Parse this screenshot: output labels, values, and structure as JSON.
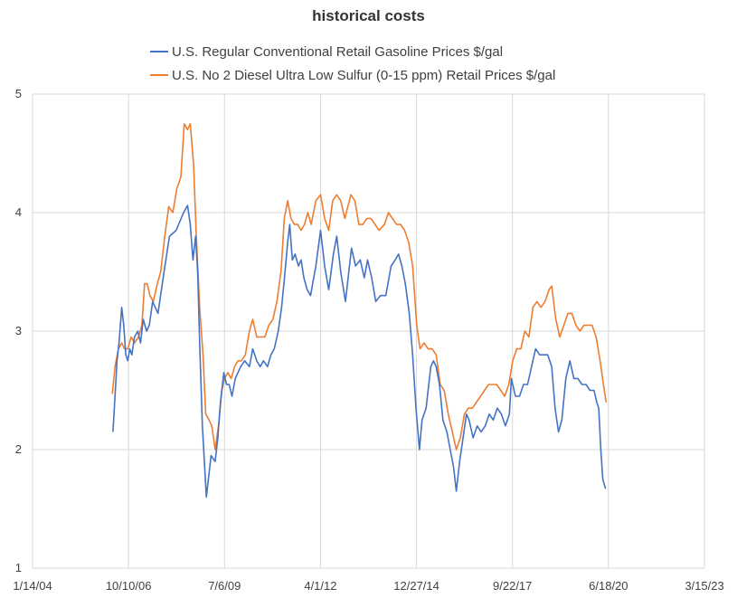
{
  "chart_data": {
    "type": "line",
    "title": "historical costs",
    "xlabel": "",
    "ylabel": "",
    "x_range": [
      "1/14/04",
      "3/15/23"
    ],
    "ylim": [
      1,
      5
    ],
    "grid": true,
    "legend_position": "top",
    "x_tick_labels": [
      "1/14/04",
      "10/10/06",
      "7/6/09",
      "4/1/12",
      "12/27/14",
      "9/22/17",
      "6/18/20",
      "3/15/23"
    ],
    "y_tick_labels": [
      "1",
      "2",
      "3",
      "4",
      "5"
    ],
    "series": [
      {
        "name": "U.S. Regular Conventional Retail Gasoline Prices $/gal",
        "color": "#4472c4",
        "points": [
          [
            "5/1/06",
            2.15
          ],
          [
            "5/22/06",
            2.45
          ],
          [
            "6/12/06",
            2.75
          ],
          [
            "7/3/06",
            2.9
          ],
          [
            "7/31/06",
            3.2
          ],
          [
            "8/21/06",
            3.05
          ],
          [
            "9/11/06",
            2.8
          ],
          [
            "10/2/06",
            2.75
          ],
          [
            "10/23/06",
            2.85
          ],
          [
            "11/13/06",
            2.8
          ],
          [
            "12/11/06",
            2.95
          ],
          [
            "1/15/07",
            3.0
          ],
          [
            "2/12/07",
            2.9
          ],
          [
            "3/12/07",
            3.1
          ],
          [
            "4/16/07",
            3.0
          ],
          [
            "5/14/07",
            3.05
          ],
          [
            "6/18/07",
            3.25
          ],
          [
            "8/13/07",
            3.15
          ],
          [
            "10/15/07",
            3.5
          ],
          [
            "12/10/07",
            3.8
          ],
          [
            "2/18/08",
            3.85
          ],
          [
            "5/5/08",
            4.0
          ],
          [
            "6/16/08",
            4.06
          ],
          [
            "7/14/08",
            3.9
          ],
          [
            "8/11/08",
            3.6
          ],
          [
            "9/8/08",
            3.8
          ],
          [
            "9/29/08",
            3.5
          ],
          [
            "10/20/08",
            2.9
          ],
          [
            "11/17/08",
            2.2
          ],
          [
            "12/8/08",
            1.9
          ],
          [
            "12/29/08",
            1.6
          ],
          [
            "1/26/09",
            1.8
          ],
          [
            "2/16/09",
            1.95
          ],
          [
            "3/30/09",
            1.9
          ],
          [
            "4/27/09",
            2.1
          ],
          [
            "5/25/09",
            2.4
          ],
          [
            "6/29/09",
            2.65
          ],
          [
            "7/27/09",
            2.55
          ],
          [
            "8/24/09",
            2.55
          ],
          [
            "9/21/09",
            2.45
          ],
          [
            "10/26/09",
            2.6
          ],
          [
            "11/23/09",
            2.65
          ],
          [
            "12/21/09",
            2.7
          ],
          [
            "2/1/10",
            2.75
          ],
          [
            "3/22/10",
            2.7
          ],
          [
            "4/26/10",
            2.85
          ],
          [
            "6/7/10",
            2.75
          ],
          [
            "7/12/10",
            2.7
          ],
          [
            "8/16/10",
            2.75
          ],
          [
            "9/27/10",
            2.7
          ],
          [
            "11/1/10",
            2.8
          ],
          [
            "12/6/10",
            2.85
          ],
          [
            "1/17/11",
            3.0
          ],
          [
            "2/21/11",
            3.2
          ],
          [
            "3/28/11",
            3.5
          ],
          [
            "4/25/11",
            3.75
          ],
          [
            "5/16/11",
            3.9
          ],
          [
            "6/13/11",
            3.6
          ],
          [
            "7/11/11",
            3.65
          ],
          [
            "8/15/11",
            3.55
          ],
          [
            "9/12/11",
            3.6
          ],
          [
            "10/10/11",
            3.45
          ],
          [
            "11/14/11",
            3.35
          ],
          [
            "12/19/11",
            3.3
          ],
          [
            "2/13/12",
            3.55
          ],
          [
            "4/2/12",
            3.85
          ],
          [
            "5/14/12",
            3.55
          ],
          [
            "6/25/12",
            3.35
          ],
          [
            "8/13/12",
            3.65
          ],
          [
            "9/17/12",
            3.8
          ],
          [
            "10/29/12",
            3.5
          ],
          [
            "12/17/12",
            3.25
          ],
          [
            "2/18/13",
            3.7
          ],
          [
            "4/1/13",
            3.55
          ],
          [
            "5/20/13",
            3.6
          ],
          [
            "7/1/13",
            3.45
          ],
          [
            "8/5/13",
            3.6
          ],
          [
            "9/16/13",
            3.45
          ],
          [
            "10/28/13",
            3.25
          ],
          [
            "12/16/13",
            3.3
          ],
          [
            "2/10/14",
            3.3
          ],
          [
            "4/7/14",
            3.55
          ],
          [
            "5/19/14",
            3.6
          ],
          [
            "6/23/14",
            3.65
          ],
          [
            "7/28/14",
            3.55
          ],
          [
            "9/1/14",
            3.4
          ],
          [
            "10/13/14",
            3.15
          ],
          [
            "11/17/14",
            2.8
          ],
          [
            "12/22/14",
            2.35
          ],
          [
            "1/26/15",
            2.0
          ],
          [
            "2/23/15",
            2.25
          ],
          [
            "4/6/15",
            2.35
          ],
          [
            "5/25/15",
            2.7
          ],
          [
            "6/22/15",
            2.75
          ],
          [
            "7/20/15",
            2.7
          ],
          [
            "8/24/15",
            2.55
          ],
          [
            "9/28/15",
            2.25
          ],
          [
            "11/9/15",
            2.15
          ],
          [
            "12/14/15",
            2.0
          ],
          [
            "1/18/16",
            1.85
          ],
          [
            "2/15/16",
            1.65
          ],
          [
            "3/21/16",
            1.9
          ],
          [
            "4/25/16",
            2.1
          ],
          [
            "5/30/16",
            2.3
          ],
          [
            "6/27/16",
            2.25
          ],
          [
            "8/8/16",
            2.1
          ],
          [
            "9/19/16",
            2.2
          ],
          [
            "10/31/16",
            2.15
          ],
          [
            "12/12/16",
            2.2
          ],
          [
            "1/23/17",
            2.3
          ],
          [
            "3/6/17",
            2.25
          ],
          [
            "4/17/17",
            2.35
          ],
          [
            "5/29/17",
            2.3
          ],
          [
            "7/10/17",
            2.2
          ],
          [
            "8/21/17",
            2.3
          ],
          [
            "9/11/17",
            2.6
          ],
          [
            "10/23/17",
            2.45
          ],
          [
            "12/4/17",
            2.45
          ],
          [
            "1/15/18",
            2.55
          ],
          [
            "2/26/18",
            2.55
          ],
          [
            "4/9/18",
            2.7
          ],
          [
            "5/21/18",
            2.85
          ],
          [
            "7/2/18",
            2.8
          ],
          [
            "8/13/18",
            2.8
          ],
          [
            "9/24/18",
            2.8
          ],
          [
            "11/5/18",
            2.7
          ],
          [
            "12/10/18",
            2.35
          ],
          [
            "1/14/19",
            2.15
          ],
          [
            "2/18/19",
            2.25
          ],
          [
            "4/1/19",
            2.6
          ],
          [
            "5/13/19",
            2.75
          ],
          [
            "6/24/19",
            2.6
          ],
          [
            "8/5/19",
            2.6
          ],
          [
            "9/16/19",
            2.55
          ],
          [
            "10/28/19",
            2.55
          ],
          [
            "12/9/19",
            2.5
          ],
          [
            "1/20/20",
            2.5
          ],
          [
            "2/17/20",
            2.4
          ],
          [
            "3/9/20",
            2.35
          ],
          [
            "3/30/20",
            2.0
          ],
          [
            "4/20/20",
            1.75
          ],
          [
            "5/18/20",
            1.67
          ]
        ]
      },
      {
        "name": "U.S. No 2 Diesel Ultra Low Sulfur (0-15 ppm) Retail Prices $/gal",
        "color": "#ed7d31",
        "points": [
          [
            "4/24/06",
            2.47
          ],
          [
            "5/22/06",
            2.7
          ],
          [
            "6/26/06",
            2.85
          ],
          [
            "7/31/06",
            2.9
          ],
          [
            "8/28/06",
            2.85
          ],
          [
            "10/2/06",
            2.85
          ],
          [
            "11/6/06",
            2.95
          ],
          [
            "12/11/06",
            2.9
          ],
          [
            "1/22/07",
            2.95
          ],
          [
            "2/26/07",
            3.05
          ],
          [
            "3/26/07",
            3.4
          ],
          [
            "4/23/07",
            3.4
          ],
          [
            "5/21/07",
            3.3
          ],
          [
            "6/25/07",
            3.25
          ],
          [
            "8/6/07",
            3.4
          ],
          [
            "9/10/07",
            3.5
          ],
          [
            "10/22/07",
            3.8
          ],
          [
            "12/3/07",
            4.05
          ],
          [
            "1/14/08",
            4.0
          ],
          [
            "2/25/08",
            4.2
          ],
          [
            "4/7/08",
            4.3
          ],
          [
            "5/12/08",
            4.75
          ],
          [
            "6/16/08",
            4.7
          ],
          [
            "7/14/08",
            4.75
          ],
          [
            "8/18/08",
            4.4
          ],
          [
            "9/15/08",
            3.8
          ],
          [
            "10/20/08",
            3.2
          ],
          [
            "11/24/08",
            2.8
          ],
          [
            "12/22/08",
            2.3
          ],
          [
            "1/26/09",
            2.25
          ],
          [
            "2/23/09",
            2.2
          ],
          [
            "3/30/09",
            2.0
          ],
          [
            "5/4/09",
            2.2
          ],
          [
            "6/8/09",
            2.5
          ],
          [
            "7/6/09",
            2.6
          ],
          [
            "8/10/09",
            2.65
          ],
          [
            "9/14/09",
            2.6
          ],
          [
            "10/19/09",
            2.7
          ],
          [
            "11/23/09",
            2.75
          ],
          [
            "12/28/09",
            2.75
          ],
          [
            "2/8/10",
            2.8
          ],
          [
            "3/22/10",
            3.0
          ],
          [
            "4/26/10",
            3.1
          ],
          [
            "6/7/10",
            2.95
          ],
          [
            "7/19/10",
            2.95
          ],
          [
            "8/30/10",
            2.95
          ],
          [
            "10/11/10",
            3.05
          ],
          [
            "11/22/10",
            3.1
          ],
          [
            "1/3/11",
            3.25
          ],
          [
            "2/14/11",
            3.5
          ],
          [
            "3/21/11",
            3.95
          ],
          [
            "4/25/11",
            4.1
          ],
          [
            "5/30/11",
            3.95
          ],
          [
            "7/4/11",
            3.9
          ],
          [
            "8/8/11",
            3.9
          ],
          [
            "9/12/11",
            3.85
          ],
          [
            "10/17/11",
            3.9
          ],
          [
            "11/21/11",
            4.0
          ],
          [
            "12/26/11",
            3.9
          ],
          [
            "2/13/12",
            4.1
          ],
          [
            "4/2/12",
            4.15
          ],
          [
            "5/14/12",
            3.95
          ],
          [
            "6/25/12",
            3.85
          ],
          [
            "8/6/12",
            4.1
          ],
          [
            "9/17/12",
            4.15
          ],
          [
            "10/29/12",
            4.1
          ],
          [
            "12/10/12",
            3.95
          ],
          [
            "2/11/13",
            4.15
          ],
          [
            "3/25/13",
            4.1
          ],
          [
            "5/6/13",
            3.9
          ],
          [
            "6/17/13",
            3.9
          ],
          [
            "7/29/13",
            3.95
          ],
          [
            "9/9/13",
            3.95
          ],
          [
            "10/21/13",
            3.9
          ],
          [
            "12/2/13",
            3.85
          ],
          [
            "1/27/14",
            3.9
          ],
          [
            "3/10/14",
            4.0
          ],
          [
            "4/21/14",
            3.95
          ],
          [
            "6/2/14",
            3.9
          ],
          [
            "7/14/14",
            3.9
          ],
          [
            "8/25/14",
            3.85
          ],
          [
            "10/6/14",
            3.75
          ],
          [
            "11/17/14",
            3.55
          ],
          [
            "12/29/14",
            3.05
          ],
          [
            "2/2/15",
            2.85
          ],
          [
            "3/16/15",
            2.9
          ],
          [
            "4/27/15",
            2.85
          ],
          [
            "6/8/15",
            2.85
          ],
          [
            "7/20/15",
            2.8
          ],
          [
            "8/31/15",
            2.55
          ],
          [
            "10/12/15",
            2.5
          ],
          [
            "11/23/15",
            2.3
          ],
          [
            "1/4/16",
            2.15
          ],
          [
            "2/15/16",
            2.0
          ],
          [
            "3/28/16",
            2.1
          ],
          [
            "5/9/16",
            2.3
          ],
          [
            "6/20/16",
            2.35
          ],
          [
            "8/1/16",
            2.35
          ],
          [
            "9/12/16",
            2.4
          ],
          [
            "10/24/16",
            2.45
          ],
          [
            "12/5/16",
            2.5
          ],
          [
            "1/16/17",
            2.55
          ],
          [
            "2/27/17",
            2.55
          ],
          [
            "4/10/17",
            2.55
          ],
          [
            "5/22/17",
            2.5
          ],
          [
            "7/3/17",
            2.45
          ],
          [
            "8/14/17",
            2.55
          ],
          [
            "9/25/17",
            2.75
          ],
          [
            "11/6/17",
            2.85
          ],
          [
            "12/18/17",
            2.85
          ],
          [
            "1/29/18",
            3.0
          ],
          [
            "3/12/18",
            2.95
          ],
          [
            "4/23/18",
            3.2
          ],
          [
            "6/4/18",
            3.25
          ],
          [
            "7/16/18",
            3.2
          ],
          [
            "8/27/18",
            3.25
          ],
          [
            "10/8/18",
            3.35
          ],
          [
            "11/5/18",
            3.38
          ],
          [
            "12/17/18",
            3.1
          ],
          [
            "1/28/19",
            2.95
          ],
          [
            "3/11/19",
            3.05
          ],
          [
            "4/22/19",
            3.15
          ],
          [
            "6/3/19",
            3.15
          ],
          [
            "7/15/19",
            3.05
          ],
          [
            "8/26/19",
            3.0
          ],
          [
            "10/7/19",
            3.05
          ],
          [
            "11/18/19",
            3.05
          ],
          [
            "12/30/19",
            3.05
          ],
          [
            "2/10/20",
            2.95
          ],
          [
            "3/23/20",
            2.75
          ],
          [
            "4/27/20",
            2.55
          ],
          [
            "5/25/20",
            2.4
          ]
        ]
      }
    ]
  }
}
